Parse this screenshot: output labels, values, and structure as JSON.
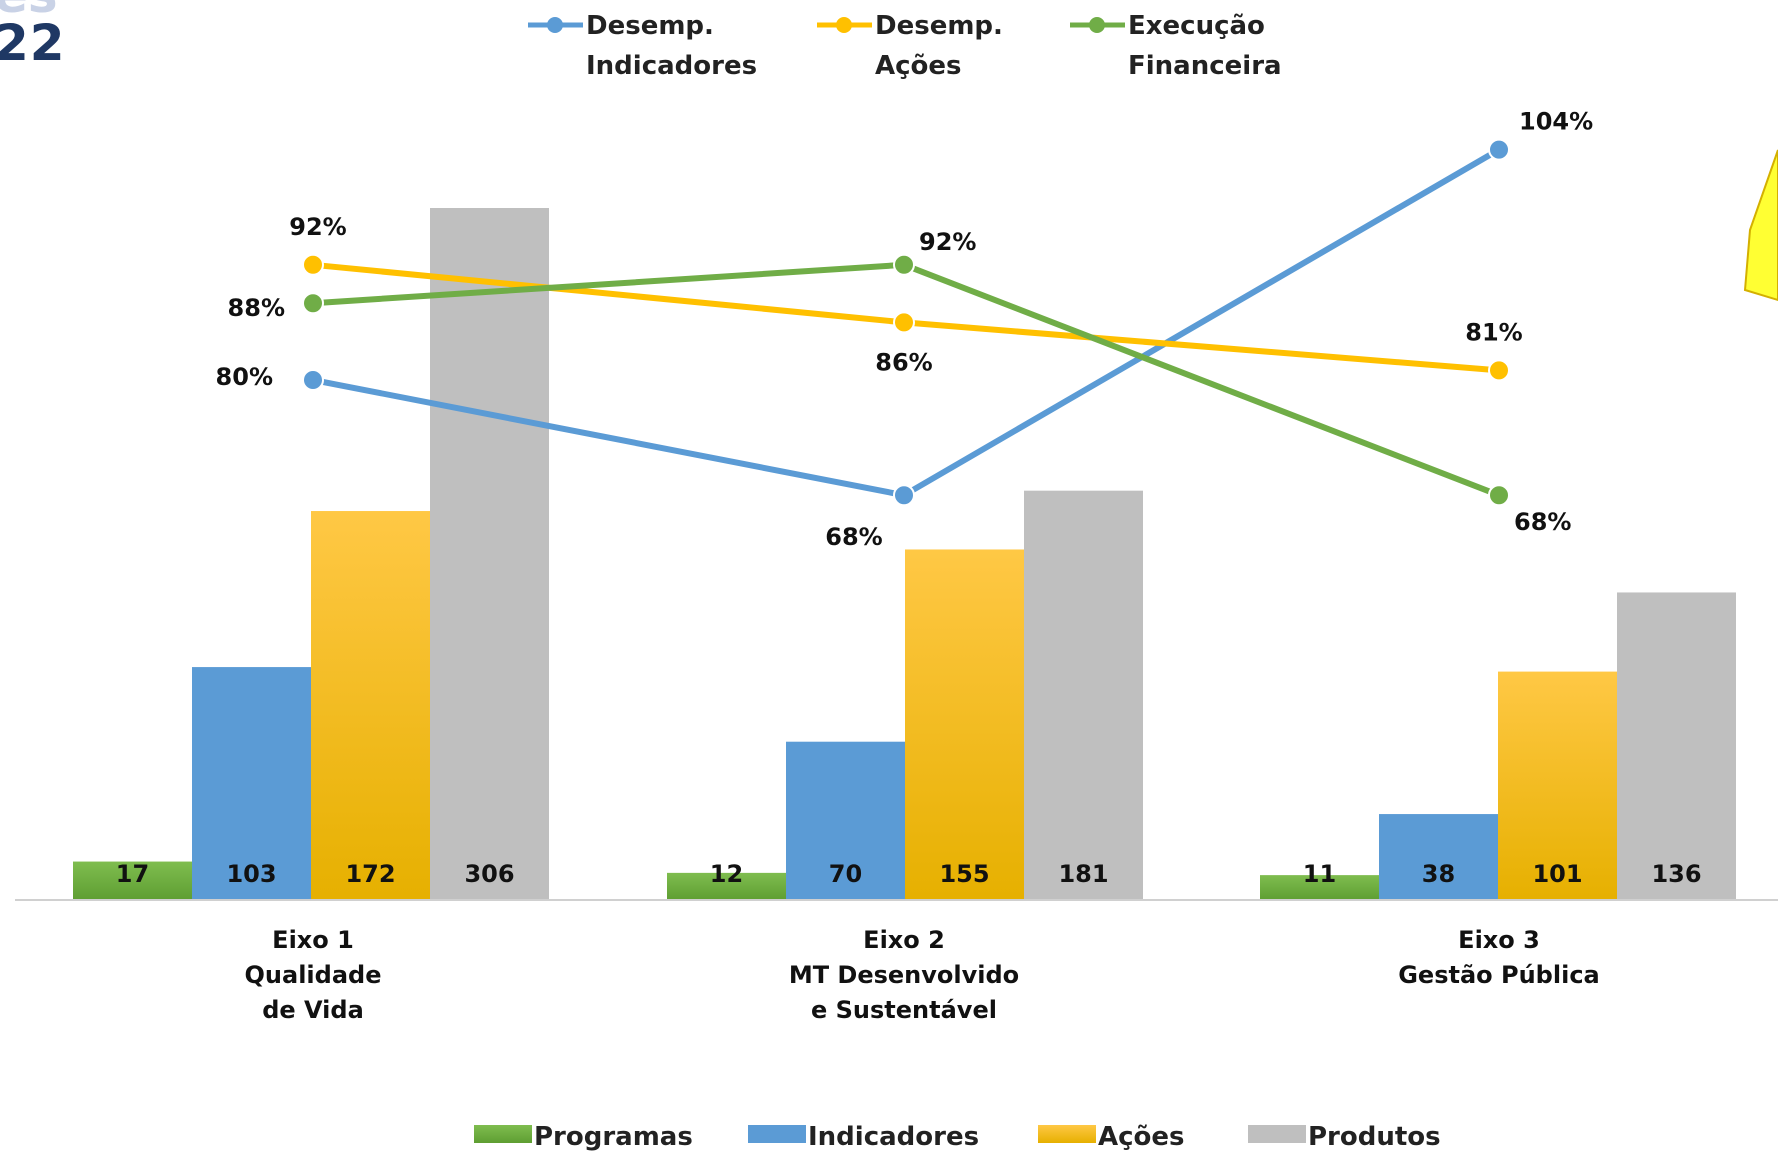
{
  "header": {
    "title_clip": "es",
    "title": "22"
  },
  "chart_data": {
    "type": "bar",
    "categories": [
      [
        "Eixo 1",
        "Qualidade",
        "de Vida"
      ],
      [
        "Eixo 2",
        "MT Desenvolvido",
        "e Sustentável"
      ],
      [
        "Eixo 3",
        "Gestão Pública"
      ]
    ],
    "bar_series": [
      {
        "name": "Programas",
        "values": [
          17,
          12,
          11
        ],
        "color_top": "#7fbd4f",
        "color_bottom": "#5e9e32"
      },
      {
        "name": "Indicadores",
        "values": [
          103,
          70,
          38
        ],
        "color_top": "#5b9bd5",
        "color_bottom": "#5b9bd5"
      },
      {
        "name": "Ações",
        "values": [
          172,
          155,
          101
        ],
        "color_top": "#ffc845",
        "color_bottom": "#e6b000"
      },
      {
        "name": "Produtos",
        "values": [
          306,
          181,
          136
        ],
        "color_top": "#bfbfbf",
        "color_bottom": "#bfbfbf"
      }
    ],
    "bar_ylim": [
      0,
      306
    ],
    "line_series": [
      {
        "name": [
          "Desemp.",
          "Indicadores"
        ],
        "values": [
          80,
          68,
          104
        ],
        "labels": [
          "80%",
          "68%",
          "104%"
        ],
        "color": "#5b9bd5"
      },
      {
        "name": [
          "Desemp.",
          "Ações"
        ],
        "values": [
          92,
          86,
          81
        ],
        "labels": [
          "92%",
          "86%",
          "81%"
        ],
        "color": "#ffc000"
      },
      {
        "name": [
          "Execução",
          "Financeira"
        ],
        "values": [
          88,
          92,
          68
        ],
        "labels": [
          "88%",
          "92%",
          "68%"
        ],
        "color": "#70ad47"
      }
    ],
    "line_unit": "%",
    "bar_legend_position": "bottom",
    "line_legend_position": "top"
  }
}
